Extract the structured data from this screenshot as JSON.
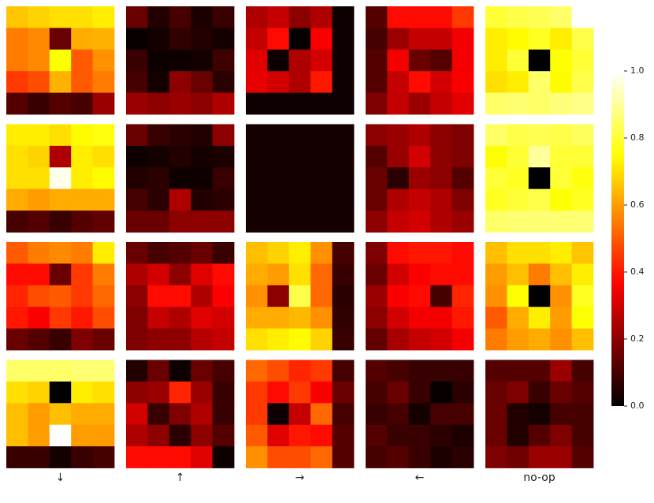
{
  "chart_data": {
    "type": "heatmap",
    "colormap": "hot",
    "column_labels": [
      "↓",
      "↑",
      "→",
      "←",
      "no-op"
    ],
    "zlim": [
      0,
      1
    ],
    "zticks": [
      {
        "value": 0,
        "label": "0.0"
      },
      {
        "value": 0.2,
        "label": "0.2"
      },
      {
        "value": 0.4,
        "label": "0.4"
      },
      {
        "value": 0.6,
        "label": "0.6"
      },
      {
        "value": 0.8,
        "label": "0.8"
      },
      {
        "value": 1,
        "label": "1.0"
      }
    ],
    "panels": [
      [
        [
          [
            0.66,
            0.68,
            0.7,
            0.7,
            0.72
          ],
          [
            0.55,
            0.57,
            0.15,
            0.62,
            0.63
          ],
          [
            0.55,
            0.57,
            0.75,
            0.5,
            0.58
          ],
          [
            0.45,
            0.48,
            0.63,
            0.5,
            0.55
          ],
          [
            0.12,
            0.08,
            0.12,
            0.1,
            0.22
          ]
        ],
        [
          [
            0.15,
            0.05,
            0.1,
            0.04,
            0.08
          ],
          [
            0.01,
            0.03,
            0.07,
            0.05,
            0.03
          ],
          [
            0.08,
            0.02,
            0.02,
            0.03,
            0.09
          ],
          [
            0.1,
            0.03,
            0.2,
            0.15,
            0.06
          ],
          [
            0.22,
            0.2,
            0.22,
            0.2,
            0.25
          ]
        ],
        [
          [
            0.25,
            0.28,
            0.2,
            0.25,
            0.02
          ],
          [
            0.28,
            0.38,
            0.01,
            0.36,
            0.02
          ],
          [
            0.32,
            0.02,
            0.25,
            0.3,
            0.02
          ],
          [
            0.33,
            0.3,
            0.25,
            0.4,
            0.02
          ],
          [
            0.02,
            0.02,
            0.02,
            0.02,
            0.02
          ]
        ],
        [
          [
            0.12,
            0.38,
            0.38,
            0.38,
            0.45
          ],
          [
            0.1,
            0.22,
            0.28,
            0.28,
            0.35
          ],
          [
            0.12,
            0.35,
            0.15,
            0.12,
            0.35
          ],
          [
            0.12,
            0.28,
            0.38,
            0.3,
            0.36
          ],
          [
            0.18,
            0.28,
            0.22,
            0.28,
            0.32
          ]
        ],
        [
          [
            0.8,
            0.82,
            0.83,
            0.85,
            1.0
          ],
          [
            0.72,
            0.74,
            0.78,
            0.72,
            0.82
          ],
          [
            0.72,
            0.8,
            0.0,
            0.75,
            0.8
          ],
          [
            0.7,
            0.72,
            0.85,
            0.74,
            0.82
          ],
          [
            0.85,
            0.86,
            0.85,
            0.87,
            0.88
          ]
        ]
      ],
      [
        [
          [
            0.72,
            0.72,
            0.7,
            0.74,
            0.76
          ],
          [
            0.7,
            0.68,
            0.25,
            0.72,
            0.7
          ],
          [
            0.7,
            0.7,
            0.98,
            0.72,
            0.74
          ],
          [
            0.62,
            0.6,
            0.62,
            0.62,
            0.62
          ],
          [
            0.1,
            0.12,
            0.08,
            0.12,
            0.14
          ]
        ],
        [
          [
            0.15,
            0.08,
            0.06,
            0.05,
            0.2
          ],
          [
            0.02,
            0.03,
            0.05,
            0.03,
            0.04
          ],
          [
            0.05,
            0.06,
            0.02,
            0.02,
            0.08
          ],
          [
            0.1,
            0.06,
            0.25,
            0.05,
            0.06
          ],
          [
            0.15,
            0.15,
            0.2,
            0.2,
            0.2
          ]
        ],
        [
          [
            0.03,
            0.03,
            0.03,
            0.03,
            0.03
          ],
          [
            0.03,
            0.03,
            0.03,
            0.03,
            0.03
          ],
          [
            0.03,
            0.03,
            0.03,
            0.03,
            0.03
          ],
          [
            0.03,
            0.03,
            0.03,
            0.03,
            0.03
          ],
          [
            0.03,
            0.03,
            0.03,
            0.03,
            0.03
          ]
        ],
        [
          [
            0.2,
            0.22,
            0.25,
            0.2,
            0.18
          ],
          [
            0.12,
            0.22,
            0.3,
            0.2,
            0.18
          ],
          [
            0.15,
            0.06,
            0.22,
            0.2,
            0.12
          ],
          [
            0.15,
            0.25,
            0.28,
            0.25,
            0.18
          ],
          [
            0.2,
            0.28,
            0.3,
            0.25,
            0.22
          ]
        ],
        [
          [
            0.85,
            0.82,
            0.83,
            0.82,
            0.84
          ],
          [
            0.75,
            0.8,
            0.9,
            0.8,
            0.8
          ],
          [
            0.8,
            0.78,
            0.0,
            0.8,
            0.76
          ],
          [
            0.78,
            0.8,
            0.82,
            0.75,
            0.78
          ],
          [
            0.85,
            0.86,
            0.86,
            0.86,
            0.86
          ]
        ]
      ],
      [
        [
          [
            0.5,
            0.55,
            0.57,
            0.55,
            0.72
          ],
          [
            0.38,
            0.38,
            0.15,
            0.45,
            0.55
          ],
          [
            0.42,
            0.48,
            0.5,
            0.45,
            0.52
          ],
          [
            0.4,
            0.36,
            0.45,
            0.4,
            0.48
          ],
          [
            0.15,
            0.12,
            0.08,
            0.18,
            0.15
          ]
        ],
        [
          [
            0.15,
            0.1,
            0.12,
            0.15,
            0.08
          ],
          [
            0.25,
            0.3,
            0.2,
            0.32,
            0.38
          ],
          [
            0.2,
            0.38,
            0.38,
            0.25,
            0.36
          ],
          [
            0.18,
            0.28,
            0.25,
            0.32,
            0.3
          ],
          [
            0.18,
            0.2,
            0.2,
            0.26,
            0.28
          ]
        ],
        [
          [
            0.65,
            0.68,
            0.72,
            0.58,
            0.1
          ],
          [
            0.62,
            0.6,
            0.7,
            0.52,
            0.08
          ],
          [
            0.58,
            0.2,
            0.82,
            0.52,
            0.06
          ],
          [
            0.62,
            0.62,
            0.64,
            0.58,
            0.07
          ],
          [
            0.7,
            0.72,
            0.74,
            0.68,
            0.08
          ]
        ],
        [
          [
            0.18,
            0.38,
            0.4,
            0.4,
            0.38
          ],
          [
            0.15,
            0.3,
            0.36,
            0.38,
            0.38
          ],
          [
            0.22,
            0.36,
            0.38,
            0.1,
            0.42
          ],
          [
            0.2,
            0.3,
            0.35,
            0.35,
            0.4
          ],
          [
            0.14,
            0.24,
            0.28,
            0.3,
            0.35
          ]
        ],
        [
          [
            0.65,
            0.7,
            0.7,
            0.72,
            0.66
          ],
          [
            0.6,
            0.65,
            0.55,
            0.65,
            0.72
          ],
          [
            0.58,
            0.75,
            0.0,
            0.58,
            0.78
          ],
          [
            0.5,
            0.62,
            0.72,
            0.6,
            0.75
          ],
          [
            0.55,
            0.6,
            0.62,
            0.58,
            0.65
          ]
        ]
      ],
      [
        [
          [
            0.85,
            0.85,
            0.85,
            0.86,
            0.86
          ],
          [
            0.7,
            0.68,
            0.0,
            0.72,
            0.7
          ],
          [
            0.65,
            0.6,
            0.65,
            0.62,
            0.62
          ],
          [
            0.65,
            0.6,
            1.0,
            0.6,
            0.6
          ],
          [
            0.08,
            0.08,
            0.03,
            0.08,
            0.1
          ]
        ],
        [
          [
            0.05,
            0.15,
            0.02,
            0.15,
            0.1
          ],
          [
            0.2,
            0.22,
            0.42,
            0.22,
            0.08
          ],
          [
            0.3,
            0.08,
            0.18,
            0.25,
            0.08
          ],
          [
            0.25,
            0.2,
            0.06,
            0.2,
            0.12
          ],
          [
            0.38,
            0.38,
            0.38,
            0.32,
            0.02
          ]
        ],
        [
          [
            0.52,
            0.48,
            0.42,
            0.45,
            0.1
          ],
          [
            0.45,
            0.38,
            0.45,
            0.36,
            0.15
          ],
          [
            0.45,
            0.02,
            0.28,
            0.52,
            0.1
          ],
          [
            0.5,
            0.32,
            0.4,
            0.38,
            0.12
          ],
          [
            0.58,
            0.48,
            0.48,
            0.52,
            0.12
          ]
        ],
        [
          [
            0.12,
            0.1,
            0.08,
            0.08,
            0.08
          ],
          [
            0.1,
            0.15,
            0.08,
            0.01,
            0.06
          ],
          [
            0.08,
            0.1,
            0.03,
            0.1,
            0.1
          ],
          [
            0.12,
            0.08,
            0.08,
            0.06,
            0.04
          ],
          [
            0.1,
            0.12,
            0.08,
            0.04,
            0.06
          ]
        ],
        [
          [
            0.12,
            0.12,
            0.12,
            0.22,
            0.1
          ],
          [
            0.15,
            0.18,
            0.08,
            0.15,
            0.12
          ],
          [
            0.15,
            0.05,
            0.03,
            0.1,
            0.1
          ],
          [
            0.15,
            0.05,
            0.12,
            0.18,
            0.1
          ],
          [
            0.18,
            0.16,
            0.22,
            0.22,
            0.12
          ]
        ]
      ]
    ]
  }
}
